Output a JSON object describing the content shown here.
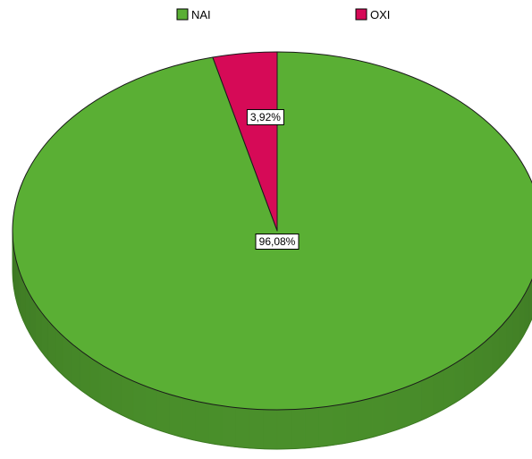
{
  "chart_data": {
    "type": "pie",
    "style": "3d",
    "legend_position": "top",
    "title": "",
    "slices": [
      {
        "name": "NAI",
        "value": 96.08,
        "label": "96,08%",
        "color": "#5aaf34"
      },
      {
        "name": "OXI",
        "value": 3.92,
        "label": "3,92%",
        "color": "#d60a57"
      }
    ]
  }
}
